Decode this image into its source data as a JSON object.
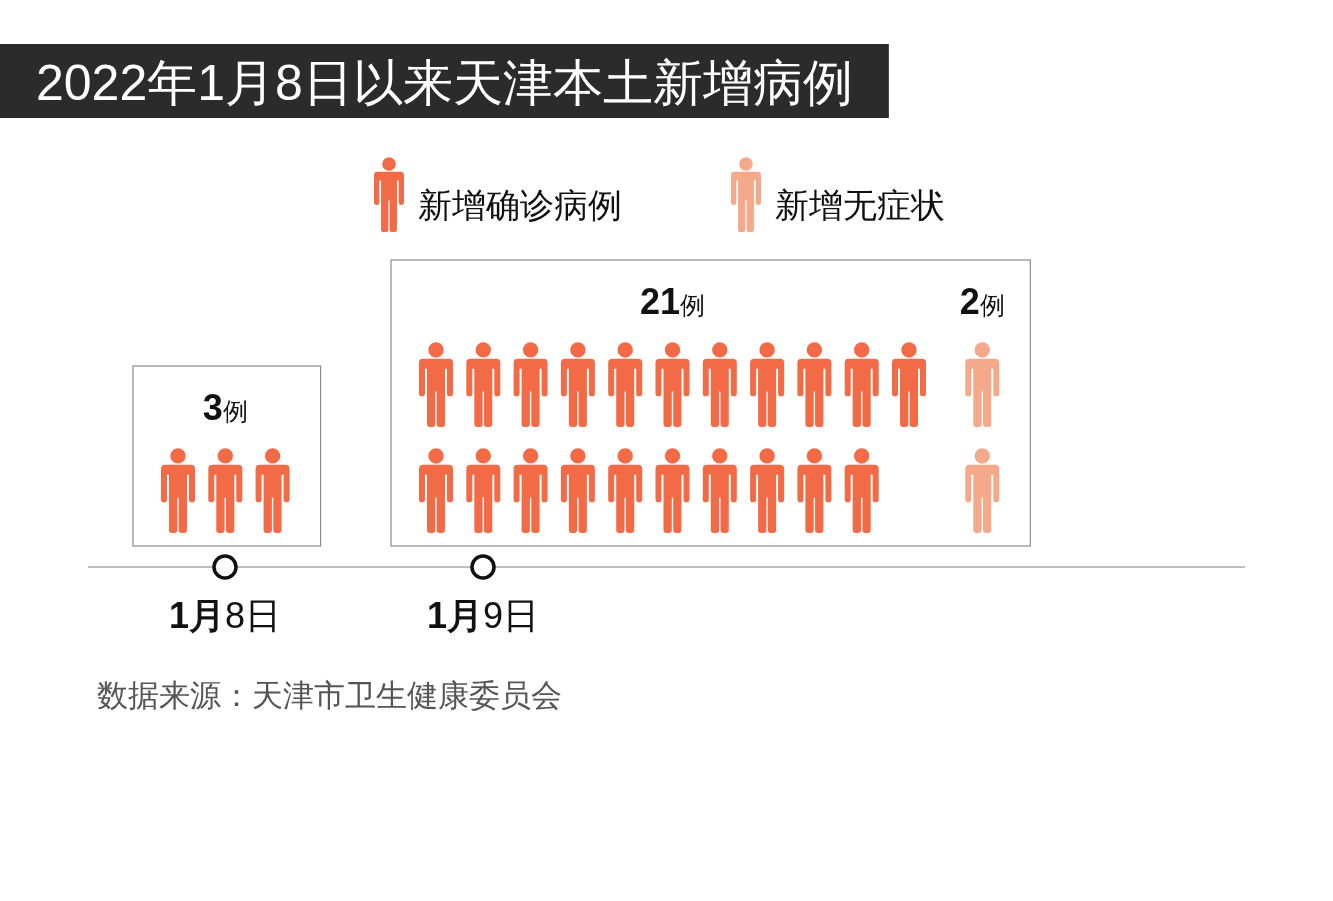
{
  "chart_data": {
    "type": "other",
    "title": "2022年1月8日以来天津本土新增病例",
    "categories": [
      "1月8日",
      "1月9日"
    ],
    "series": [
      {
        "name": "新增确诊病例",
        "color": "#f26b46",
        "values": [
          3,
          21
        ],
        "value_labels": [
          "3例",
          "21例"
        ]
      },
      {
        "name": "新增无症状",
        "color": "#f5a98b",
        "values": [
          null,
          2
        ],
        "value_labels": [
          null,
          "2例"
        ]
      }
    ],
    "legend": "top",
    "annotations": [
      "数据来源：天津市卫生健康委员会"
    ]
  }
}
